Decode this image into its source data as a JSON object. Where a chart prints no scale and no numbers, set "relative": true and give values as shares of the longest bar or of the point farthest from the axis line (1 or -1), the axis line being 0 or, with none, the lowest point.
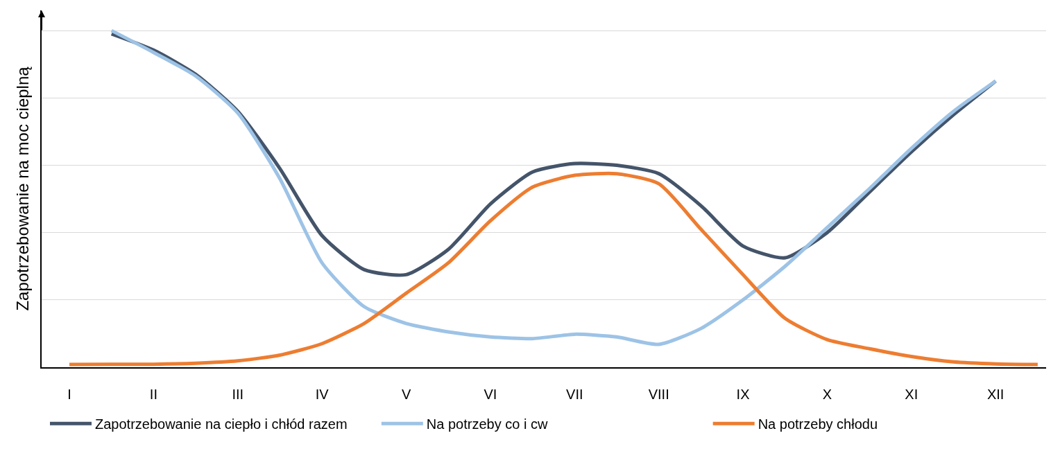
{
  "chart_data": {
    "type": "line",
    "ylabel": "Zapotrzebowanie na moc cieplną",
    "relative": true,
    "grid": "y",
    "legend": "bottom",
    "marker": "none",
    "line_style": "solid",
    "categories": [
      "I",
      null,
      "II",
      null,
      "III",
      null,
      "IV",
      null,
      "V",
      null,
      "VI",
      null,
      "VII",
      null,
      "VIII",
      null,
      "IX",
      null,
      "X",
      null,
      "XI",
      null,
      "XII",
      null
    ],
    "series": [
      {
        "name": "Zapotrzebowanie na ciepło i chłód razem",
        "color": "#44546a",
        "values": [
          null,
          0.99,
          0.942,
          0.87,
          0.76,
          0.59,
          0.391,
          0.29,
          0.275,
          0.35,
          0.485,
          0.58,
          0.605,
          0.6,
          0.575,
          0.48,
          0.36,
          0.325,
          0.4,
          0.52,
          0.64,
          0.75,
          0.85,
          null
        ]
      },
      {
        "name": "Na potrzeby co i cw",
        "color": "#9dc3e6",
        "values": [
          null,
          1.0,
          0.935,
          0.865,
          0.755,
          0.56,
          0.31,
          0.18,
          0.13,
          0.105,
          0.09,
          0.085,
          0.098,
          0.09,
          0.068,
          0.115,
          0.2,
          0.3,
          0.415,
          0.53,
          0.65,
          0.76,
          0.85,
          null
        ]
      },
      {
        "name": "Na potrzeby chłodu",
        "color": "#ed7d31",
        "values": [
          0.008,
          0.009,
          0.009,
          0.012,
          0.019,
          0.036,
          0.07,
          0.13,
          0.22,
          0.31,
          0.435,
          0.535,
          0.57,
          0.575,
          0.545,
          0.41,
          0.275,
          0.145,
          0.082,
          0.055,
          0.032,
          0.016,
          0.01,
          0.008
        ]
      }
    ]
  }
}
